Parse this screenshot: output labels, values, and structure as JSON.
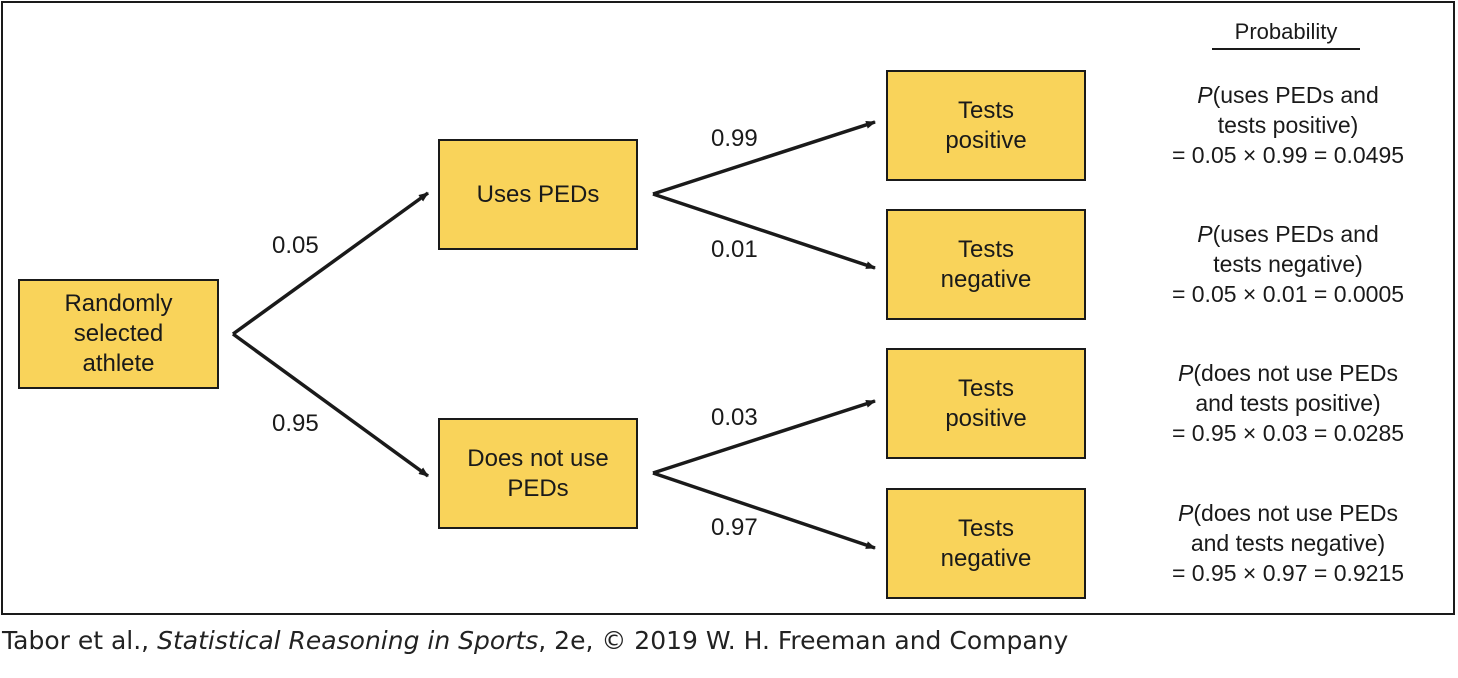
{
  "nodes": {
    "root": [
      "Randomly",
      "selected",
      "athlete"
    ],
    "uses": [
      "Uses PEDs"
    ],
    "not_uses": [
      "Does not use",
      "PEDs"
    ],
    "leaf1": [
      "Tests",
      "positive"
    ],
    "leaf2": [
      "Tests",
      "negative"
    ],
    "leaf3": [
      "Tests",
      "positive"
    ],
    "leaf4": [
      "Tests",
      "negative"
    ]
  },
  "edges": {
    "root_uses": "0.05",
    "root_not_uses": "0.95",
    "uses_pos": "0.99",
    "uses_neg": "0.01",
    "not_uses_pos": "0.03",
    "not_uses_neg": "0.97"
  },
  "probabilities": {
    "header": "Probability",
    "items": [
      {
        "p": "P",
        "rest": "(uses PEDs and",
        "line2": "tests positive)",
        "line3": "= 0.05 × 0.99 = 0.0495"
      },
      {
        "p": "P",
        "rest": "(uses PEDs and",
        "line2": "tests negative)",
        "line3": "= 0.05 × 0.01 = 0.0005"
      },
      {
        "p": "P",
        "rest": "(does not use PEDs",
        "line2": "and tests positive)",
        "line3": "= 0.95 × 0.03 = 0.0285"
      },
      {
        "p": "P",
        "rest": "(does not use PEDs",
        "line2": "and tests negative)",
        "line3": "= 0.95 × 0.97 = 0.9215"
      }
    ]
  },
  "credit": {
    "pre": "Tabor et al., ",
    "book": "Statistical Reasoning in Sports",
    "post": ", 2e, © 2019 W. H. Freeman and Company"
  },
  "colors": {
    "box_fill": "#f9d35a",
    "stroke": "#1a1a1a"
  }
}
